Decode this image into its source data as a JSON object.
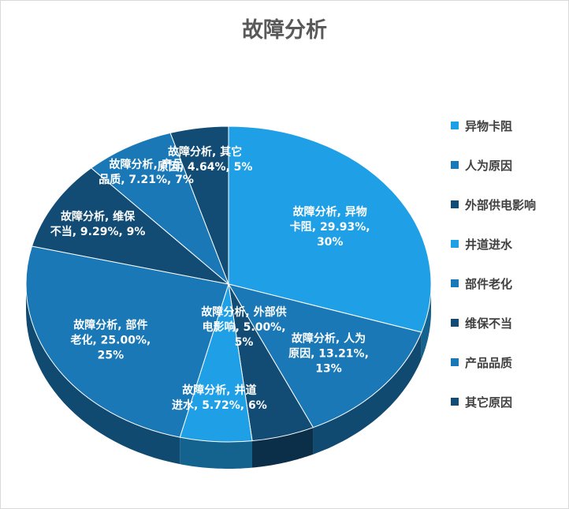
{
  "chart_data": {
    "type": "pie",
    "title": "故障分析",
    "categories": [
      "异物卡阻",
      "人为原因",
      "外部供电影响",
      "井道进水",
      "部件老化",
      "维保不当",
      "产品品质",
      "其它原因"
    ],
    "values": [
      29.93,
      13.21,
      5.0,
      5.72,
      25.0,
      9.29,
      7.21,
      4.64
    ],
    "labels": [
      [
        "故障分析, 异物",
        "卡阻, 29.93%,",
        "30%"
      ],
      [
        "故障分析, 人为",
        "原因, 13.21%,",
        "13%"
      ],
      [
        "故障分析, 外部供",
        "电影响, 5.00%,",
        "5%"
      ],
      [
        "故障分析, 井道",
        "进水, 5.72%, 6%"
      ],
      [
        "故障分析, 部件",
        "老化, 25.00%,",
        "25%"
      ],
      [
        "故障分析, 维保",
        "不当, 9.29%, 9%"
      ],
      [
        "故障分析, 产品",
        "品质, 7.21%, 7%"
      ],
      [
        "故障分析, 其它",
        "原因, 4.64%, 5%"
      ]
    ],
    "colors": [
      "#1f9fe5",
      "#1a78b6",
      "#124c75",
      "#1f9fe5",
      "#1a78b6",
      "#124c75",
      "#1a78b6",
      "#124c75"
    ],
    "legend_position": "right"
  }
}
